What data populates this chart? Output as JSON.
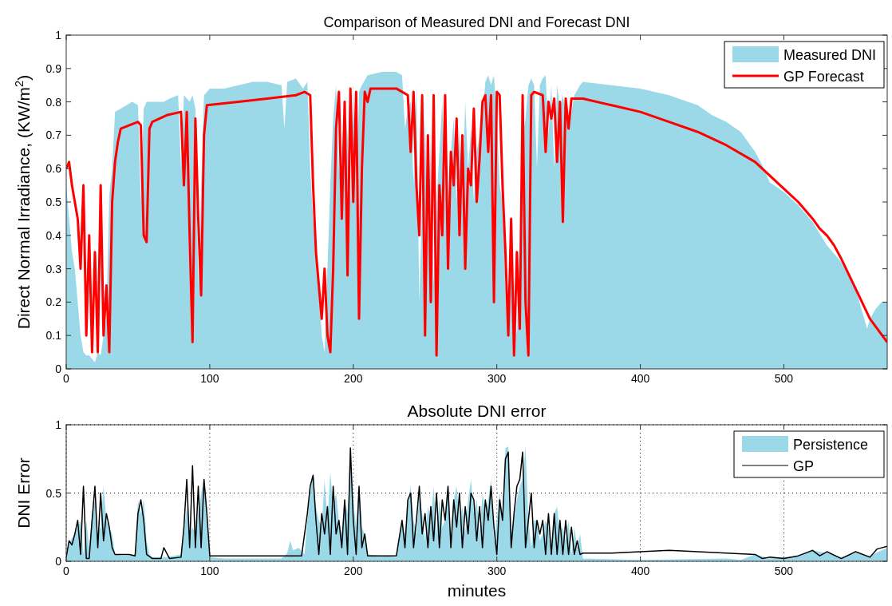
{
  "chart_data": [
    {
      "type": "area",
      "title": "Comparison of Measured DNI and Forecast DNI",
      "ylabel": "Direct Normal Irradiance, (KW/m$^{2}$)",
      "xlim": [
        0,
        572
      ],
      "xticks": [
        0,
        100,
        200,
        300,
        400,
        500
      ],
      "ylim": [
        0,
        1
      ],
      "yticks": [
        0,
        0.1,
        0.2,
        0.3,
        0.4,
        0.5,
        0.6,
        0.7,
        0.8,
        0.9,
        1
      ],
      "legend": "top right",
      "series": [
        {
          "name": "Measured DNI",
          "color": "#9bd9e9",
          "x": [
            0,
            2,
            4,
            6,
            8,
            10,
            12,
            14,
            16,
            18,
            20,
            22,
            24,
            26,
            28,
            30,
            32,
            34,
            38,
            42,
            46,
            50,
            52,
            54,
            56,
            60,
            64,
            68,
            72,
            78,
            80,
            82,
            86,
            88,
            90,
            92,
            94,
            96,
            100,
            110,
            120,
            130,
            140,
            150,
            152,
            154,
            160,
            165,
            168,
            170,
            172,
            174,
            176,
            178,
            180,
            182,
            184,
            186,
            188,
            190,
            192,
            194,
            196,
            198,
            200,
            202,
            204,
            206,
            210,
            220,
            230,
            234,
            236,
            238,
            240,
            242,
            244,
            246,
            248,
            250,
            252,
            254,
            256,
            258,
            260,
            262,
            264,
            266,
            268,
            270,
            272,
            274,
            276,
            278,
            280,
            282,
            284,
            286,
            288,
            290,
            292,
            294,
            296,
            298,
            300,
            302,
            304,
            306,
            308,
            310,
            312,
            314,
            316,
            318,
            320,
            322,
            324,
            326,
            328,
            330,
            332,
            334,
            336,
            338,
            340,
            342,
            344,
            346,
            350,
            354,
            358,
            360,
            380,
            400,
            420,
            440,
            450,
            460,
            470,
            480,
            485,
            490,
            500,
            510,
            520,
            530,
            540,
            550,
            558,
            560,
            564,
            568,
            572
          ],
          "values": [
            0.55,
            0.45,
            0.35,
            0.3,
            0.2,
            0.1,
            0.05,
            0.04,
            0.04,
            0.03,
            0.02,
            0.05,
            0.04,
            0.1,
            0.15,
            0.52,
            0.6,
            0.77,
            0.78,
            0.79,
            0.8,
            0.79,
            0.5,
            0.78,
            0.8,
            0.8,
            0.8,
            0.8,
            0.81,
            0.82,
            0.6,
            0.82,
            0.8,
            0.82,
            0.78,
            0.25,
            0.55,
            0.82,
            0.84,
            0.84,
            0.85,
            0.86,
            0.86,
            0.85,
            0.72,
            0.86,
            0.87,
            0.84,
            0.86,
            0.6,
            0.45,
            0.35,
            0.25,
            0.1,
            0.05,
            0.3,
            0.55,
            0.75,
            0.85,
            0.6,
            0.55,
            0.82,
            0.7,
            0.5,
            0.85,
            0.5,
            0.83,
            0.85,
            0.88,
            0.89,
            0.89,
            0.88,
            0.72,
            0.78,
            0.8,
            0.55,
            0.85,
            0.2,
            0.5,
            0.75,
            0.35,
            0.7,
            0.25,
            0.5,
            0.65,
            0.8,
            0.55,
            0.45,
            0.65,
            0.75,
            0.5,
            0.72,
            0.5,
            0.8,
            0.6,
            0.72,
            0.5,
            0.65,
            0.7,
            0.75,
            0.86,
            0.88,
            0.85,
            0.88,
            0.75,
            0.55,
            0.5,
            0.25,
            0.15,
            0.4,
            0.2,
            0.1,
            0.3,
            0.7,
            0.75,
            0.85,
            0.87,
            0.85,
            0.6,
            0.85,
            0.87,
            0.88,
            0.7,
            0.85,
            0.6,
            0.85,
            0.78,
            0.82,
            0.72,
            0.82,
            0.85,
            0.86,
            0.85,
            0.84,
            0.82,
            0.79,
            0.76,
            0.74,
            0.71,
            0.65,
            0.61,
            0.56,
            0.53,
            0.49,
            0.44,
            0.37,
            0.32,
            0.24,
            0.12,
            0.15,
            0.18,
            0.2,
            0.2
          ]
        },
        {
          "name": "GP Forecast",
          "type": "line",
          "color": "#ff0000",
          "x": [
            0,
            2,
            4,
            6,
            8,
            10,
            12,
            14,
            16,
            18,
            20,
            22,
            24,
            26,
            28,
            30,
            32,
            34,
            36,
            38,
            50,
            52,
            54,
            56,
            58,
            60,
            70,
            80,
            82,
            84,
            86,
            88,
            90,
            92,
            94,
            96,
            98,
            120,
            140,
            160,
            166,
            170,
            172,
            174,
            176,
            178,
            180,
            182,
            184,
            186,
            188,
            190,
            192,
            194,
            196,
            198,
            200,
            202,
            204,
            206,
            208,
            210,
            212,
            230,
            238,
            240,
            242,
            244,
            246,
            248,
            250,
            252,
            254,
            256,
            258,
            260,
            262,
            264,
            266,
            268,
            270,
            272,
            274,
            276,
            278,
            280,
            282,
            284,
            286,
            288,
            290,
            292,
            294,
            296,
            298,
            300,
            302,
            304,
            306,
            308,
            310,
            312,
            314,
            316,
            318,
            320,
            322,
            324,
            326,
            332,
            334,
            336,
            338,
            340,
            342,
            344,
            346,
            348,
            350,
            352,
            360,
            380,
            400,
            420,
            440,
            460,
            480,
            500,
            510,
            520,
            525,
            530,
            535,
            540,
            550,
            560,
            572
          ],
          "values": [
            0.6,
            0.62,
            0.55,
            0.5,
            0.45,
            0.3,
            0.55,
            0.1,
            0.4,
            0.05,
            0.35,
            0.05,
            0.55,
            0.1,
            0.25,
            0.05,
            0.5,
            0.62,
            0.68,
            0.72,
            0.74,
            0.73,
            0.4,
            0.38,
            0.72,
            0.74,
            0.76,
            0.77,
            0.55,
            0.77,
            0.4,
            0.08,
            0.75,
            0.45,
            0.22,
            0.7,
            0.79,
            0.8,
            0.81,
            0.82,
            0.83,
            0.82,
            0.55,
            0.35,
            0.25,
            0.15,
            0.3,
            0.1,
            0.05,
            0.3,
            0.72,
            0.83,
            0.45,
            0.8,
            0.28,
            0.84,
            0.5,
            0.83,
            0.15,
            0.6,
            0.83,
            0.8,
            0.84,
            0.84,
            0.82,
            0.65,
            0.83,
            0.55,
            0.4,
            0.82,
            0.1,
            0.7,
            0.2,
            0.82,
            0.04,
            0.55,
            0.4,
            0.82,
            0.3,
            0.65,
            0.55,
            0.75,
            0.4,
            0.7,
            0.3,
            0.6,
            0.55,
            0.78,
            0.5,
            0.63,
            0.8,
            0.82,
            0.65,
            0.82,
            0.2,
            0.83,
            0.82,
            0.55,
            0.35,
            0.1,
            0.45,
            0.04,
            0.35,
            0.12,
            0.82,
            0.2,
            0.04,
            0.82,
            0.83,
            0.82,
            0.65,
            0.8,
            0.75,
            0.81,
            0.62,
            0.8,
            0.44,
            0.81,
            0.72,
            0.81,
            0.81,
            0.79,
            0.77,
            0.74,
            0.71,
            0.67,
            0.62,
            0.54,
            0.5,
            0.45,
            0.42,
            0.4,
            0.37,
            0.33,
            0.24,
            0.15,
            0.08
          ]
        }
      ]
    },
    {
      "type": "area",
      "title": "Absolute DNI error",
      "xlabel": "minutes",
      "ylabel": "DNI Error",
      "xlim": [
        0,
        572
      ],
      "xticks": [
        0,
        100,
        200,
        300,
        400,
        500
      ],
      "ylim": [
        0,
        1
      ],
      "yticks": [
        0,
        0.5,
        1
      ],
      "grid": true,
      "legend": "top right",
      "series": [
        {
          "name": "Persistence",
          "color": "#9bd9e9",
          "x": [
            0,
            3,
            6,
            8,
            10,
            12,
            14,
            16,
            18,
            20,
            22,
            24,
            26,
            28,
            30,
            32,
            34,
            40,
            48,
            50,
            52,
            54,
            56,
            58,
            60,
            70,
            80,
            84,
            86,
            88,
            90,
            92,
            94,
            96,
            98,
            100,
            110,
            150,
            154,
            156,
            158,
            162,
            166,
            168,
            170,
            172,
            174,
            176,
            178,
            180,
            182,
            184,
            186,
            188,
            190,
            192,
            194,
            196,
            198,
            200,
            202,
            204,
            206,
            208,
            210,
            230,
            234,
            236,
            238,
            240,
            242,
            244,
            246,
            248,
            250,
            252,
            254,
            256,
            258,
            260,
            262,
            264,
            266,
            268,
            270,
            272,
            274,
            276,
            278,
            280,
            282,
            284,
            286,
            288,
            290,
            292,
            294,
            296,
            298,
            300,
            302,
            304,
            306,
            308,
            310,
            312,
            314,
            316,
            318,
            320,
            322,
            324,
            326,
            328,
            330,
            332,
            334,
            336,
            338,
            340,
            342,
            344,
            346,
            348,
            350,
            352,
            354,
            356,
            358,
            360,
            400,
            460,
            470,
            480,
            484,
            490,
            500,
            510,
            520,
            530,
            540,
            550,
            560,
            572
          ],
          "values": [
            0.05,
            0.15,
            0.2,
            0.25,
            0.3,
            0.05,
            0.3,
            0.1,
            0.35,
            0.45,
            0.2,
            0.25,
            0.55,
            0.3,
            0.25,
            0.2,
            0.05,
            0.04,
            0.05,
            0.45,
            0.35,
            0.45,
            0.15,
            0.05,
            0.03,
            0.03,
            0.05,
            0.4,
            0.2,
            0.25,
            0.2,
            0.35,
            0.5,
            0.6,
            0.3,
            0.03,
            0.02,
            0.02,
            0.06,
            0.15,
            0.08,
            0.1,
            0.05,
            0.3,
            0.5,
            0.65,
            0.4,
            0.3,
            0.25,
            0.6,
            0.3,
            0.65,
            0.4,
            0.5,
            0.3,
            0.2,
            0.45,
            0.35,
            0.75,
            0.45,
            0.25,
            0.55,
            0.25,
            0.2,
            0.05,
            0.03,
            0.3,
            0.2,
            0.4,
            0.55,
            0.3,
            0.2,
            0.5,
            0.35,
            0.15,
            0.4,
            0.3,
            0.55,
            0.2,
            0.45,
            0.25,
            0.3,
            0.55,
            0.15,
            0.45,
            0.55,
            0.3,
            0.4,
            0.2,
            0.45,
            0.6,
            0.35,
            0.45,
            0.2,
            0.5,
            0.35,
            0.45,
            0.6,
            0.15,
            0.3,
            0.5,
            0.35,
            0.83,
            0.84,
            0.2,
            0.3,
            0.45,
            0.55,
            0.6,
            0.84,
            0.3,
            0.1,
            0.3,
            0.3,
            0.15,
            0.2,
            0.3,
            0.25,
            0.1,
            0.35,
            0.4,
            0.2,
            0.25,
            0.15,
            0.3,
            0.05,
            0.25,
            0.1,
            0.2,
            0.02,
            0.01,
            0.02,
            0.01,
            0.05,
            0.04,
            0.02,
            0.03,
            0.04,
            0.08,
            0.06,
            0.03,
            0.06,
            0.04,
            0.1
          ]
        },
        {
          "name": "GP",
          "type": "line",
          "color": "#000000",
          "x": [
            0,
            2,
            4,
            6,
            8,
            10,
            12,
            14,
            16,
            18,
            20,
            22,
            24,
            26,
            28,
            30,
            32,
            34,
            40,
            44,
            48,
            50,
            52,
            54,
            56,
            60,
            66,
            68,
            72,
            80,
            82,
            84,
            86,
            88,
            90,
            92,
            94,
            96,
            98,
            100,
            150,
            160,
            164,
            168,
            170,
            172,
            174,
            176,
            178,
            180,
            182,
            184,
            186,
            188,
            190,
            192,
            194,
            196,
            198,
            200,
            202,
            204,
            206,
            208,
            210,
            230,
            234,
            236,
            238,
            240,
            242,
            244,
            246,
            248,
            250,
            252,
            254,
            256,
            258,
            260,
            262,
            264,
            266,
            268,
            270,
            272,
            274,
            276,
            278,
            280,
            282,
            284,
            286,
            288,
            290,
            292,
            294,
            296,
            298,
            300,
            302,
            304,
            306,
            308,
            310,
            312,
            314,
            316,
            318,
            320,
            322,
            324,
            326,
            328,
            330,
            332,
            334,
            336,
            338,
            340,
            342,
            344,
            346,
            348,
            350,
            352,
            354,
            356,
            358,
            360,
            380,
            400,
            420,
            440,
            460,
            480,
            485,
            490,
            500,
            510,
            520,
            525,
            530,
            540,
            550,
            560,
            565,
            572
          ],
          "values": [
            0.03,
            0.15,
            0.12,
            0.2,
            0.3,
            0.05,
            0.55,
            0.02,
            0.02,
            0.3,
            0.55,
            0.1,
            0.5,
            0.15,
            0.35,
            0.25,
            0.1,
            0.05,
            0.05,
            0.05,
            0.04,
            0.35,
            0.45,
            0.3,
            0.05,
            0.02,
            0.02,
            0.1,
            0.02,
            0.03,
            0.25,
            0.6,
            0.1,
            0.7,
            0.1,
            0.55,
            0.1,
            0.6,
            0.35,
            0.04,
            0.04,
            0.04,
            0.04,
            0.35,
            0.55,
            0.63,
            0.3,
            0.05,
            0.35,
            0.2,
            0.4,
            0.05,
            0.55,
            0.2,
            0.3,
            0.1,
            0.45,
            0.05,
            0.83,
            0.3,
            0.05,
            0.55,
            0.1,
            0.2,
            0.04,
            0.04,
            0.3,
            0.1,
            0.45,
            0.5,
            0.1,
            0.3,
            0.55,
            0.2,
            0.35,
            0.1,
            0.4,
            0.15,
            0.5,
            0.1,
            0.45,
            0.3,
            0.55,
            0.1,
            0.45,
            0.25,
            0.5,
            0.1,
            0.4,
            0.2,
            0.5,
            0.45,
            0.15,
            0.4,
            0.1,
            0.45,
            0.3,
            0.55,
            0.25,
            0.05,
            0.45,
            0.3,
            0.75,
            0.8,
            0.1,
            0.35,
            0.55,
            0.6,
            0.8,
            0.1,
            0.3,
            0.5,
            0.1,
            0.3,
            0.2,
            0.3,
            0.05,
            0.35,
            0.05,
            0.35,
            0.05,
            0.3,
            0.05,
            0.3,
            0.05,
            0.25,
            0.05,
            0.15,
            0.05,
            0.06,
            0.06,
            0.07,
            0.08,
            0.07,
            0.06,
            0.05,
            0.02,
            0.03,
            0.02,
            0.04,
            0.08,
            0.04,
            0.07,
            0.02,
            0.07,
            0.03,
            0.09,
            0.11
          ]
        }
      ]
    }
  ]
}
